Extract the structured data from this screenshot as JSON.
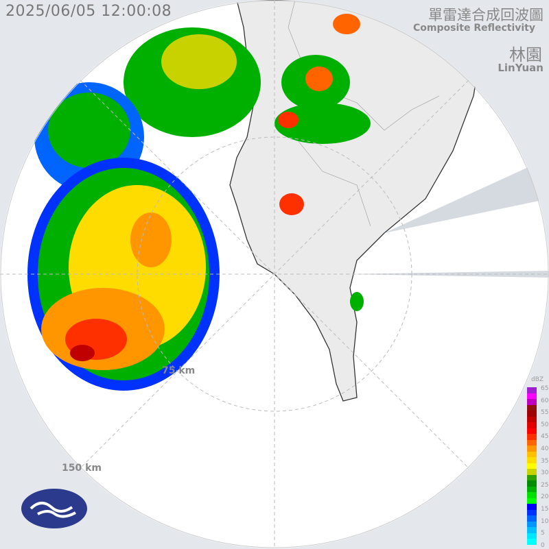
{
  "header": {
    "timestamp": "2025/06/05 12:00:08",
    "title_zh": "單雷達合成回波圖",
    "title_en": "Composite Reflectivity",
    "station_zh": "林園",
    "station_en": "LinYuan"
  },
  "map": {
    "range_rings": [
      {
        "label": "75 km",
        "km": 75
      },
      {
        "label": "150 km",
        "km": 150
      }
    ],
    "colors": {
      "outside": "#e4e8ed",
      "sea": "#ffffff",
      "land": "#ebebeb",
      "coast": "#333333"
    }
  },
  "legend": {
    "unit": "dBZ",
    "ticks": [
      "65",
      "60",
      "55",
      "50",
      "45",
      "40",
      "35",
      "30",
      "25",
      "20",
      "15",
      "10",
      "5",
      "0"
    ],
    "colors": [
      "#00ffff",
      "#00e6ff",
      "#00c0ff",
      "#0096ff",
      "#0064ff",
      "#0032ff",
      "#0000ff",
      "#00ff00",
      "#00e000",
      "#00b000",
      "#008c00",
      "#30a000",
      "#c8d200",
      "#ffff00",
      "#ffdc00",
      "#ffc000",
      "#ff9600",
      "#ff6400",
      "#ff3000",
      "#ff0000",
      "#e00000",
      "#c00000",
      "#a00000",
      "#901010",
      "#c000c0",
      "#ff00ff",
      "#a020d0"
    ]
  },
  "logo": {
    "name": "cwa-logo"
  }
}
